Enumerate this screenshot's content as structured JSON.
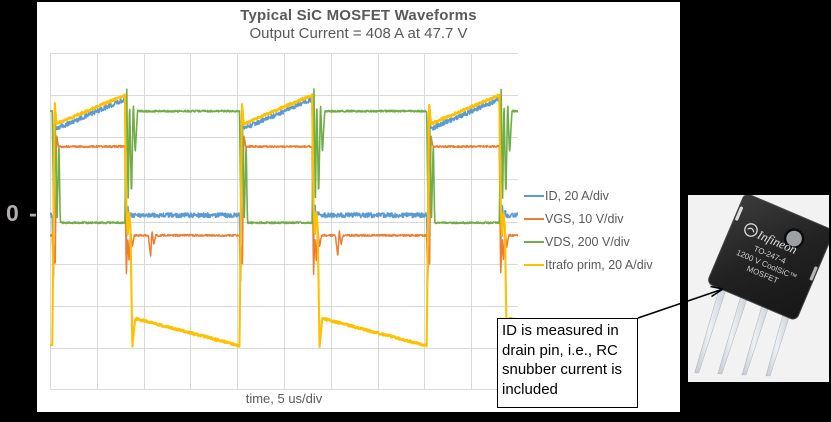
{
  "page": {
    "background": "#000000"
  },
  "zero_axis_label": "0 -",
  "chart_data": {
    "type": "line",
    "title": "Typical SiC MOSFET Waveforms",
    "subtitle": "Output Current = 408 A at 47.7 V",
    "xlabel": "time, 5 us/div",
    "x_divisions": 10,
    "y_divisions": 8,
    "zero_div_from_top": 4,
    "grid": true,
    "grid_color": "#d9d9d9",
    "legend_position": "right",
    "time_per_div": "5 us",
    "timing_div": {
      "period": 4.0,
      "first_turnon": 0.05,
      "on_duration": 1.55,
      "num_periods": 3
    },
    "series": [
      {
        "name": "ID, 20 A/div",
        "color": "#5B9BD5",
        "stroke": 1.6,
        "noise_div": 0.055,
        "on_ramp": [
          2.2,
          2.9
        ],
        "off_level": 0.15,
        "turnon_keys": [
          [
            0,
            0.15
          ],
          [
            0.02,
            -1.6
          ],
          [
            0.05,
            2.45
          ],
          [
            0.08,
            2.2
          ]
        ],
        "turnoff_keys": [
          [
            0,
            2.9
          ],
          [
            0.03,
            -0.55
          ],
          [
            0.06,
            0.4
          ],
          [
            0.09,
            0.0
          ],
          [
            0.12,
            0.25
          ],
          [
            0.15,
            0.15
          ]
        ]
      },
      {
        "name": "VGS, 10 V/div",
        "color": "#ED7D31",
        "stroke": 1.5,
        "noise_div": 0.022,
        "on_ramp": [
          1.78,
          1.78
        ],
        "off_level": -0.33,
        "turnon_keys": [
          [
            0,
            -0.33
          ],
          [
            0.02,
            -1.5
          ],
          [
            0.04,
            -0.5
          ],
          [
            0.06,
            -1.2
          ],
          [
            0.09,
            2.05
          ],
          [
            0.13,
            1.78
          ]
        ],
        "turnoff_keys": [
          [
            0,
            1.78
          ],
          [
            0.03,
            -1.3
          ],
          [
            0.06,
            -0.35
          ],
          [
            0.09,
            -0.95
          ],
          [
            0.12,
            -0.2
          ],
          [
            0.16,
            -0.6
          ],
          [
            0.2,
            -0.33
          ],
          [
            0.5,
            -0.33
          ],
          [
            0.55,
            -0.85
          ],
          [
            0.58,
            -0.2
          ],
          [
            0.62,
            -0.55
          ],
          [
            0.66,
            -0.33
          ]
        ]
      },
      {
        "name": "VDS, 200 V/div",
        "color": "#70AD47",
        "stroke": 1.6,
        "noise_div": 0.02,
        "on_ramp": [
          -0.03,
          -0.03
        ],
        "off_level": 2.62,
        "turnon_keys": [
          [
            0,
            2.62
          ],
          [
            0.03,
            0.0
          ],
          [
            0.06,
            2.5
          ],
          [
            0.1,
            0.0
          ],
          [
            0.14,
            1.9
          ],
          [
            0.17,
            -0.03
          ]
        ],
        "turnoff_keys": [
          [
            0,
            -0.03
          ],
          [
            0.04,
            3.15
          ],
          [
            0.07,
            0.4
          ],
          [
            0.1,
            2.9
          ],
          [
            0.14,
            0.55
          ],
          [
            0.18,
            2.85
          ],
          [
            0.22,
            1.6
          ],
          [
            0.27,
            2.62
          ]
        ]
      },
      {
        "name": "Itrafo prim, 20 A/div",
        "color": "#FFC000",
        "stroke": 2.1,
        "noise_div": 0.03,
        "on_ramp": [
          2.32,
          3.0
        ],
        "off_ramp": [
          -2.3,
          -2.95
        ],
        "turnon_keys": [
          [
            0,
            -2.95
          ],
          [
            0.05,
            2.84
          ],
          [
            0.09,
            2.32
          ]
        ],
        "turnoff_keys": [
          [
            0,
            3.0
          ],
          [
            0.03,
            0.5
          ],
          [
            0.06,
            -0.4
          ],
          [
            0.09,
            0.25
          ],
          [
            0.12,
            -0.15
          ],
          [
            0.16,
            -2.97
          ],
          [
            0.22,
            -2.3
          ]
        ]
      }
    ]
  },
  "annotation": {
    "lines": [
      "ID is measured in",
      "drain pin, i.e., RC",
      "snubber current is",
      "included"
    ]
  },
  "device_image": {
    "brand": "Infineon",
    "package_lines": [
      "TO-247-4",
      "1200 V CoolSiC™",
      "MOSFET"
    ]
  }
}
